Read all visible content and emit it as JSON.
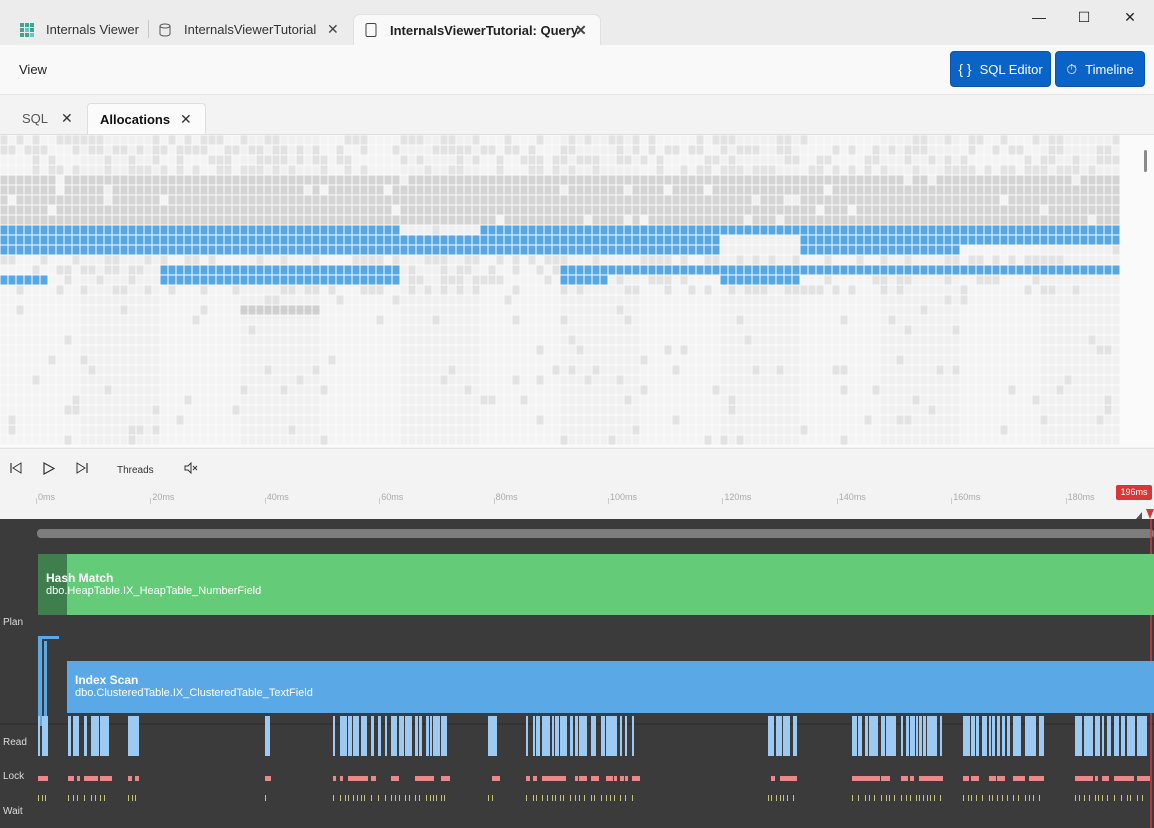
{
  "window": {
    "tabs": [
      {
        "label": "Internals Viewer",
        "icon": "grid-app-icon"
      },
      {
        "label": "InternalsViewerTutorial",
        "icon": "database-icon"
      },
      {
        "label": "InternalsViewerTutorial: Query",
        "icon": "document-icon"
      }
    ],
    "minimize_icon": "—",
    "maximize_icon": "☐",
    "close_icon": "✕"
  },
  "toolbar": {
    "menu_view": "View",
    "sql_editor_label": "SQL Editor",
    "sql_editor_icon": "{ }",
    "timeline_label": "Timeline",
    "timeline_icon": "⏱"
  },
  "doc_tabs": [
    {
      "label": "SQL"
    },
    {
      "label": "Allocations"
    }
  ],
  "controls": {
    "threads_label": "Threads"
  },
  "ruler": {
    "ticks": [
      "0ms",
      "20ms",
      "40ms",
      "60ms",
      "80ms",
      "100ms",
      "120ms",
      "140ms",
      "160ms",
      "180ms"
    ],
    "current": "196ms"
  },
  "timeline": {
    "lanes": [
      "Plan",
      "Read",
      "Lock",
      "Wait"
    ],
    "operators": [
      {
        "name": "Hash Match",
        "object": "dbo.HeapTable.IX_HeapTable_NumberField",
        "color": "#64cc79"
      },
      {
        "name": "Index Scan",
        "object": "dbo.ClusteredTable.IX_ClusteredTable_TextField",
        "color": "#5aa9e6"
      }
    ]
  },
  "colors": {
    "accent": "#0a63c6",
    "alloc_blue": "#56a8e5",
    "alloc_gray": "#d4d4d4",
    "read": "#9ccaf3",
    "lock": "#e98a8a",
    "wait": "#c6c67a",
    "marker": "#d93737"
  }
}
